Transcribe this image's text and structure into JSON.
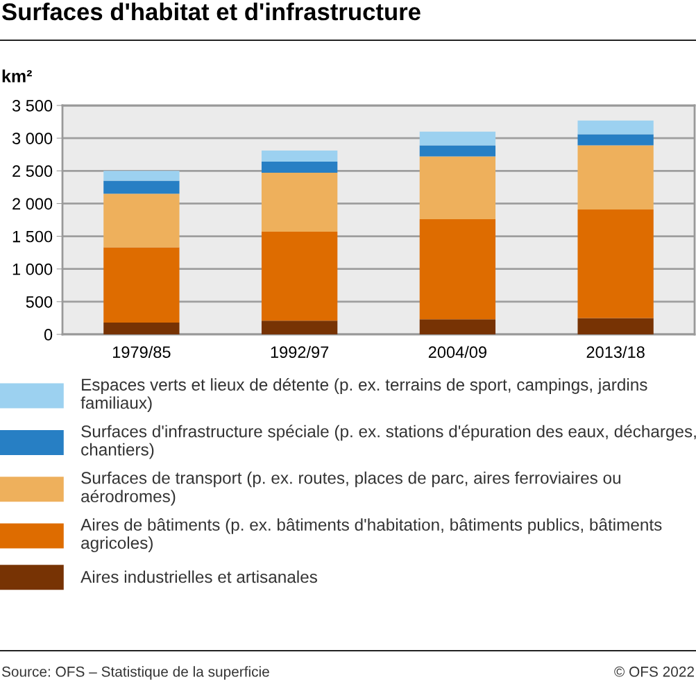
{
  "chart_data": {
    "type": "bar",
    "title": "Surfaces d'habitat et d'infrastructure",
    "ylabel": "km²",
    "categories": [
      "1979/85",
      "1992/97",
      "2004/09",
      "2013/18"
    ],
    "stacked": true,
    "grid": "y",
    "legend": "bottom",
    "series": [
      {
        "name": "Aires industrielles et artisanales",
        "color": "#773304",
        "values": [
          180,
          210,
          230,
          250
        ]
      },
      {
        "name": "Aires de bâtiments (p. ex. bâtiments d'habitation, bâtiments publics, bâtiments agricoles)",
        "color": "#de6c00",
        "values": [
          1150,
          1360,
          1530,
          1660
        ]
      },
      {
        "name": "Surfaces de transport (p. ex. routes, places de parc, aires ferroviaires ou aérodromes)",
        "color": "#eeb05c",
        "values": [
          820,
          900,
          960,
          980
        ]
      },
      {
        "name": "Surfaces d'infrastructure spéciale (p. ex. stations d'épuration des eaux, décharges, chantiers)",
        "color": "#277fc4",
        "values": [
          200,
          170,
          170,
          170
        ]
      },
      {
        "name": "Espaces verts et lieux de détente (p. ex. terrains de sport, campings, jardins familiaux)",
        "color": "#9cd1f0",
        "values": [
          150,
          170,
          210,
          210
        ]
      }
    ],
    "ylim": [
      0,
      3500
    ],
    "yticks": [
      0,
      500,
      {
        "value": 1000,
        "label": "1 000"
      },
      {
        "value": 1500,
        "label": "1 500"
      },
      {
        "value": 2000,
        "label": "2 000"
      },
      {
        "value": 2500,
        "label": "2 500"
      },
      {
        "value": 3000,
        "label": "3 000"
      },
      {
        "value": 3500,
        "label": "3 500"
      }
    ],
    "annotations": [
      "Source: OFS – Statistique de la superficie",
      "© OFS 2022"
    ]
  }
}
